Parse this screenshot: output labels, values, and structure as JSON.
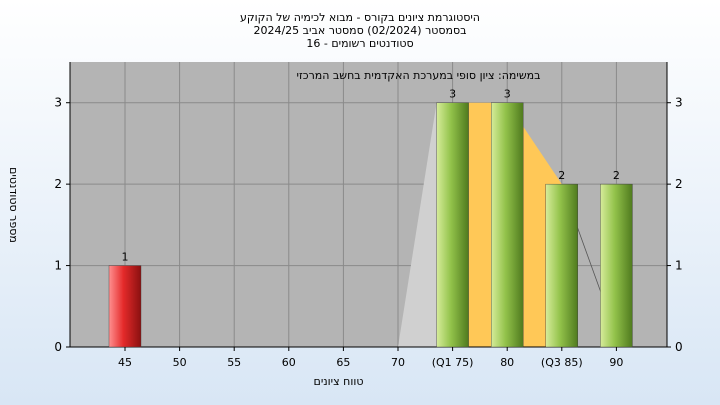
{
  "chart_data": {
    "type": "bar",
    "title": [
      "היסטוגרמת ציונים בקורס - מבוא לכימיה של הקוקע",
      "בסמסטר (02/2024) סמסטר אביב 2024/25",
      "סטודנטים רשומים - 16"
    ],
    "subtitle": "במשימה: ציון סופי במערכת האקדמית בחשב המרכזי",
    "xlabel": "טווח ציונים",
    "ylabel": "מספר סטודנטים",
    "categories": [
      "45",
      "50",
      "55",
      "60",
      "65",
      "70",
      "(Q1 75)",
      "80",
      "(Q3 85)",
      "90"
    ],
    "values": [
      1,
      0,
      0,
      0,
      0,
      0,
      3,
      3,
      2,
      2
    ],
    "bar_labels": [
      "1",
      "",
      "",
      "",
      "",
      "",
      "3",
      "3",
      "2",
      "2"
    ],
    "ylim": [
      0,
      3.5
    ],
    "yticks": [
      0,
      1,
      2,
      3
    ],
    "grid": true,
    "colors": {
      "below_pass": "#e03030",
      "pass": "#8ab84a",
      "iqr_band": "#ffc857",
      "plot_bg": "#b4b4b4"
    }
  }
}
